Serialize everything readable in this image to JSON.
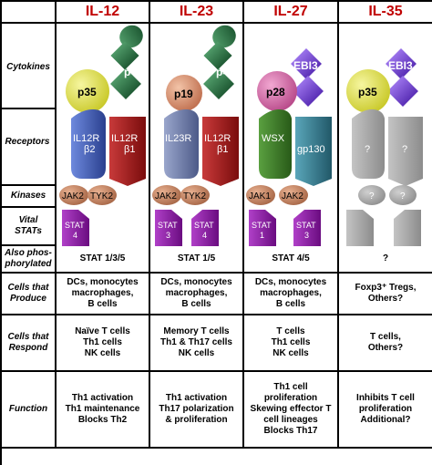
{
  "headers": [
    "IL-12",
    "IL-23",
    "IL-27",
    "IL-35"
  ],
  "rows": {
    "cytokines": "Cytokines",
    "receptors": "Receptors",
    "kinases": "Kinases",
    "vital_stats": "Vital\nSTATs",
    "also_phos": "Also phos-\nphorylated",
    "produce": "Cells that\nProduce",
    "respond": "Cells that\nRespond",
    "function": "Function"
  },
  "diagram": {
    "il12": {
      "alpha": "p35",
      "beta": "p40",
      "r1": "IL12R\nβ2",
      "r2": "IL12R\nβ1",
      "k1": "JAK2",
      "k2": "TYK2",
      "s1": "STAT\n4"
    },
    "il23": {
      "alpha": "p19",
      "beta": "p40",
      "r1": "IL23R",
      "r2": "IL12R\nβ1",
      "k1": "JAK2",
      "k2": "TYK2",
      "s1": "STAT\n3",
      "s2": "STAT\n4"
    },
    "il27": {
      "alpha": "p28",
      "beta": "EBI3",
      "r1": "WSX",
      "r2": "gp130",
      "k1": "JAK1",
      "k2": "JAK2",
      "s1": "STAT\n1",
      "s2": "STAT\n3"
    },
    "il35": {
      "alpha": "p35",
      "beta": "EBI3",
      "r1": "?",
      "r2": "?",
      "k1": "?",
      "k2": "?"
    }
  },
  "also_phos": [
    "STAT 1/3/5",
    "STAT 1/5",
    "STAT 4/5",
    "?"
  ],
  "produce": [
    "DCs, monocytes\nmacrophages,\nB cells",
    "DCs, monocytes\nmacrophages,\nB cells",
    "DCs, monocytes\nmacrophages,\nB cells",
    "Foxp3⁺ Tregs,\nOthers?"
  ],
  "respond": [
    "Naïve T cells\nTh1 cells\nNK cells",
    "Memory T cells\nTh1 & Th17  cells\nNK cells",
    "T cells\nTh1 cells\nNK cells",
    "T cells,\nOthers?"
  ],
  "function": [
    "Th1 activation\nTh1 maintenance\nBlocks Th2",
    "Th1 activation\nTh17 polarization\n& proliferation",
    "Th1 cell\nproliferation\nSkewing effector T\ncell lineages\nBlocks Th17",
    "Inhibits T cell\nproliferation\nAdditional?"
  ],
  "colors": {
    "header_text": "#c00000",
    "p35": "#e2e24a",
    "p40": "#2f7a4a",
    "p19": "#d9906a",
    "p28": "#d86aa8",
    "ebi3": "#7b4fd6",
    "r_blue": "#3d5bb8",
    "r_red": "#a01818",
    "r_slate": "#6c7aaa",
    "r_green": "#3d7a2a",
    "r_teal": "#3a7f92",
    "kinase": "#c8866a",
    "stat": "#8a1aa0",
    "grey": "#a9a9a9"
  }
}
